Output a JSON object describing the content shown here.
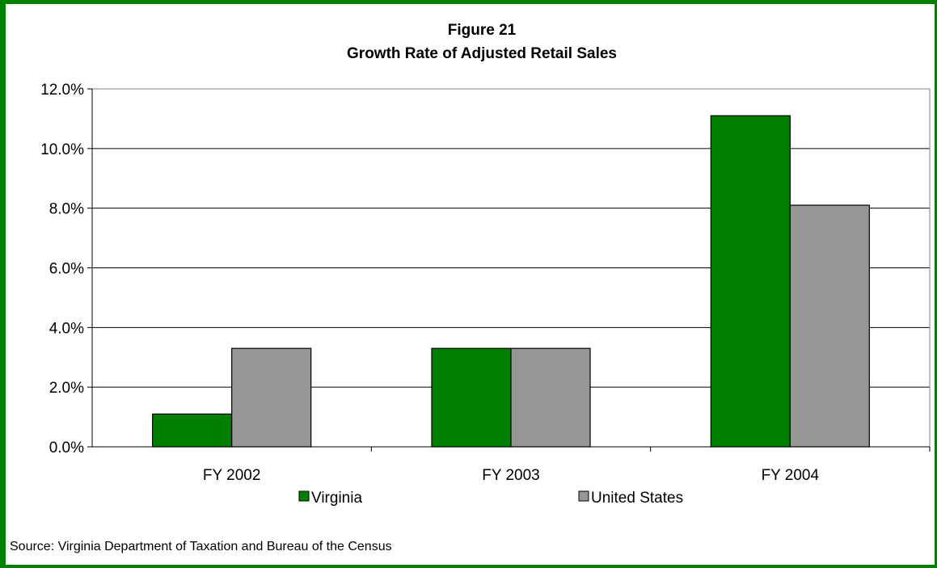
{
  "chart_data": {
    "type": "bar",
    "title_line1": "Figure 21",
    "title_line2": "Growth Rate of Adjusted Retail Sales",
    "categories": [
      "FY 2002",
      "FY 2003",
      "FY 2004"
    ],
    "series": [
      {
        "name": "Virginia",
        "values": [
          1.1,
          3.3,
          11.1
        ],
        "color": "#008000"
      },
      {
        "name": "United States",
        "values": [
          3.3,
          3.3,
          8.1
        ],
        "color": "#969696"
      }
    ],
    "ylim": [
      0,
      12
    ],
    "yticks": [
      0,
      2,
      4,
      6,
      8,
      10,
      12
    ],
    "ytick_labels": [
      "0.0%",
      "2.0%",
      "4.0%",
      "6.0%",
      "8.0%",
      "10.0%",
      "12.0%"
    ],
    "grid": true,
    "legend_position": "bottom",
    "source": "Source:  Virginia Department of Taxation and Bureau of the Census"
  }
}
